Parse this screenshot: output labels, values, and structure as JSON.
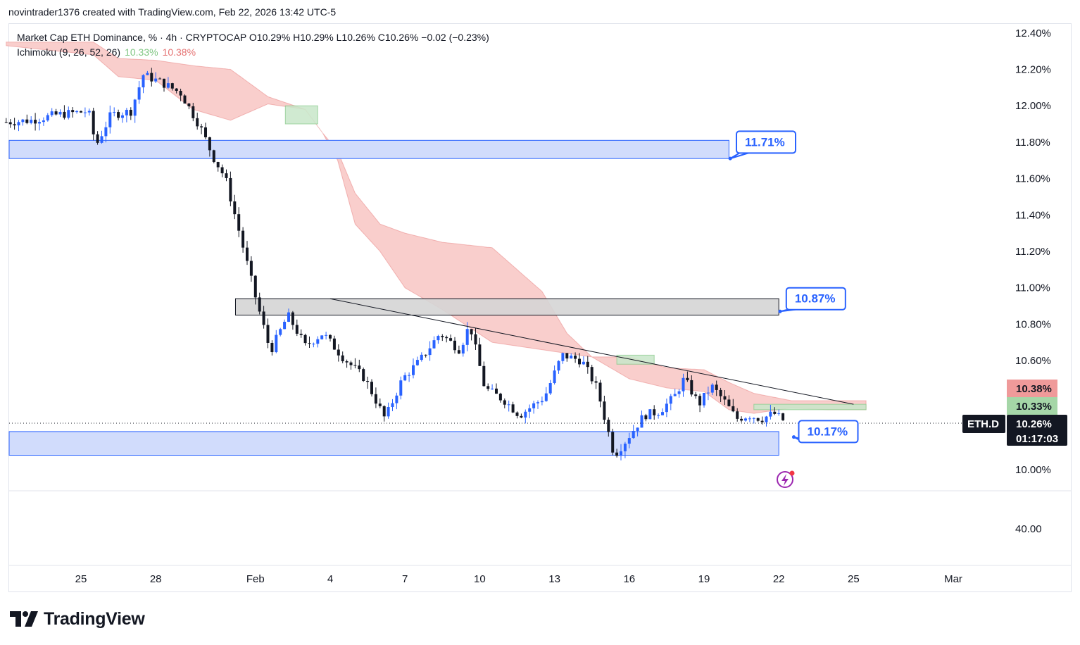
{
  "header": {
    "credit": "novintrader1376 created with TradingView.com, Feb 22, 2026 13:42 UTC-5"
  },
  "legend": {
    "main": "Market Cap ETH Dominance, % · 4h · CRYPTOCAP  O10.29%  H10.29%  L10.26%  C10.26%  −0.02 (−0.23%)",
    "indicator": "Ichimoku (9, 26, 52, 26)",
    "indicator_val1": "10.33%",
    "indicator_val2": "10.38%"
  },
  "price_tags": {
    "symbol": "ETH.D",
    "last": "10.26%",
    "countdown": "01:17:03",
    "span_a": "10.33%",
    "span_b": "10.38%"
  },
  "brand": {
    "name": "TradingView"
  },
  "colors": {
    "bull": "#2962ff",
    "bear": "#131722",
    "cloud_bear": "#f8c9c7",
    "cloud_bull": "#c8e6c9",
    "zone": "#d1dcfc",
    "zone_border": "#2962ff",
    "grey_zone": "#d5d5d5",
    "tag_green": "#a5d6a7",
    "tag_red": "#ef9a9a"
  },
  "chart_data": {
    "type": "candlestick",
    "title": "Market Cap ETH Dominance, % · 4h · CRYPTOCAP",
    "xlabel": "",
    "ylabel": "%",
    "ylim": [
      9.95,
      12.45
    ],
    "x_ticks": [
      "25",
      "28",
      "Feb",
      "4",
      "7",
      "10",
      "13",
      "16",
      "19",
      "22",
      "25",
      "Mar"
    ],
    "x_tick_days": [
      0,
      3,
      7,
      10,
      13,
      16,
      19,
      22,
      25,
      28,
      31,
      35
    ],
    "y_ticks": [
      "12.40%",
      "12.20%",
      "12.00%",
      "11.80%",
      "11.60%",
      "11.40%",
      "11.20%",
      "11.00%",
      "10.80%",
      "10.60%",
      "10.00%"
    ],
    "y_tick_values": [
      12.4,
      12.2,
      12.0,
      11.8,
      11.6,
      11.4,
      11.2,
      11.0,
      10.8,
      10.6,
      10.0
    ],
    "volume_scale_label": "40.00",
    "series": [
      {
        "name": "ETH.D close path (sparse, 4h candles generated between)",
        "points": [
          {
            "day": -3.0,
            "v": 11.91
          },
          {
            "day": -2.0,
            "v": 11.92
          },
          {
            "day": -1.0,
            "v": 11.95
          },
          {
            "day": 0.3,
            "v": 11.97
          },
          {
            "day": 0.6,
            "v": 11.78
          },
          {
            "day": 1.2,
            "v": 11.95
          },
          {
            "day": 2.0,
            "v": 11.97
          },
          {
            "day": 2.5,
            "v": 12.17
          },
          {
            "day": 3.2,
            "v": 12.13
          },
          {
            "day": 4.0,
            "v": 12.07
          },
          {
            "day": 4.8,
            "v": 11.88
          },
          {
            "day": 5.3,
            "v": 11.72
          },
          {
            "day": 5.8,
            "v": 11.6
          },
          {
            "day": 6.4,
            "v": 11.28
          },
          {
            "day": 7.0,
            "v": 10.95
          },
          {
            "day": 7.6,
            "v": 10.65
          },
          {
            "day": 8.3,
            "v": 10.85
          },
          {
            "day": 9.0,
            "v": 10.68
          },
          {
            "day": 9.7,
            "v": 10.75
          },
          {
            "day": 10.5,
            "v": 10.62
          },
          {
            "day": 11.4,
            "v": 10.5
          },
          {
            "day": 12.2,
            "v": 10.28
          },
          {
            "day": 12.9,
            "v": 10.5
          },
          {
            "day": 13.6,
            "v": 10.6
          },
          {
            "day": 14.4,
            "v": 10.75
          },
          {
            "day": 15.2,
            "v": 10.66
          },
          {
            "day": 15.6,
            "v": 10.8
          },
          {
            "day": 16.2,
            "v": 10.45
          },
          {
            "day": 17.0,
            "v": 10.38
          },
          {
            "day": 17.6,
            "v": 10.3
          },
          {
            "day": 18.6,
            "v": 10.4
          },
          {
            "day": 19.3,
            "v": 10.63
          },
          {
            "day": 20.1,
            "v": 10.6
          },
          {
            "day": 20.7,
            "v": 10.45
          },
          {
            "day": 21.4,
            "v": 10.08
          },
          {
            "day": 21.8,
            "v": 10.15
          },
          {
            "day": 22.6,
            "v": 10.3
          },
          {
            "day": 23.2,
            "v": 10.32
          },
          {
            "day": 23.8,
            "v": 10.4
          },
          {
            "day": 24.2,
            "v": 10.5
          },
          {
            "day": 24.8,
            "v": 10.36
          },
          {
            "day": 25.3,
            "v": 10.46
          },
          {
            "day": 25.8,
            "v": 10.38
          },
          {
            "day": 26.3,
            "v": 10.28
          },
          {
            "day": 26.8,
            "v": 10.3
          },
          {
            "day": 27.3,
            "v": 10.28
          },
          {
            "day": 27.8,
            "v": 10.31
          },
          {
            "day": 28.3,
            "v": 10.26
          }
        ]
      },
      {
        "name": "Ichimoku cloud top",
        "points": [
          {
            "day": -3.0,
            "v": 12.35
          },
          {
            "day": 0.5,
            "v": 12.35
          },
          {
            "day": 1.5,
            "v": 12.26
          },
          {
            "day": 3.0,
            "v": 12.25
          },
          {
            "day": 4.5,
            "v": 12.22
          },
          {
            "day": 6.0,
            "v": 12.2
          },
          {
            "day": 7.5,
            "v": 12.05
          },
          {
            "day": 9.0,
            "v": 11.98
          },
          {
            "day": 9.7,
            "v": 11.85
          },
          {
            "day": 10.3,
            "v": 11.75
          },
          {
            "day": 11.0,
            "v": 11.52
          },
          {
            "day": 12.0,
            "v": 11.35
          },
          {
            "day": 13.0,
            "v": 11.3
          },
          {
            "day": 14.5,
            "v": 11.25
          },
          {
            "day": 16.5,
            "v": 11.22
          },
          {
            "day": 17.5,
            "v": 11.1
          },
          {
            "day": 18.5,
            "v": 10.98
          },
          {
            "day": 19.5,
            "v": 10.75
          },
          {
            "day": 20.5,
            "v": 10.62
          },
          {
            "day": 22.0,
            "v": 10.62
          },
          {
            "day": 23.5,
            "v": 10.56
          },
          {
            "day": 25.0,
            "v": 10.55
          },
          {
            "day": 26.0,
            "v": 10.48
          },
          {
            "day": 27.0,
            "v": 10.42
          },
          {
            "day": 28.5,
            "v": 10.38
          },
          {
            "day": 30.0,
            "v": 10.38
          },
          {
            "day": 31.5,
            "v": 10.38
          }
        ]
      },
      {
        "name": "Ichimoku cloud bottom",
        "points": [
          {
            "day": -3.0,
            "v": 12.33
          },
          {
            "day": 0.5,
            "v": 12.28
          },
          {
            "day": 1.5,
            "v": 12.16
          },
          {
            "day": 3.0,
            "v": 12.14
          },
          {
            "day": 4.5,
            "v": 11.98
          },
          {
            "day": 6.0,
            "v": 11.92
          },
          {
            "day": 7.5,
            "v": 12.01
          },
          {
            "day": 9.0,
            "v": 11.98
          },
          {
            "day": 9.7,
            "v": 11.85
          },
          {
            "day": 10.3,
            "v": 11.7
          },
          {
            "day": 11.0,
            "v": 11.35
          },
          {
            "day": 12.0,
            "v": 11.2
          },
          {
            "day": 13.0,
            "v": 11.0
          },
          {
            "day": 14.5,
            "v": 10.88
          },
          {
            "day": 16.5,
            "v": 10.7
          },
          {
            "day": 17.5,
            "v": 10.68
          },
          {
            "day": 18.5,
            "v": 10.66
          },
          {
            "day": 19.5,
            "v": 10.64
          },
          {
            "day": 20.5,
            "v": 10.62
          },
          {
            "day": 22.0,
            "v": 10.5
          },
          {
            "day": 23.5,
            "v": 10.45
          },
          {
            "day": 25.0,
            "v": 10.43
          },
          {
            "day": 26.0,
            "v": 10.33
          },
          {
            "day": 27.0,
            "v": 10.31
          },
          {
            "day": 28.5,
            "v": 10.34
          },
          {
            "day": 30.0,
            "v": 10.33
          },
          {
            "day": 31.5,
            "v": 10.33
          }
        ]
      }
    ],
    "zones": [
      {
        "name": "resistance-zone-upper",
        "from_day": -3.2,
        "to_day": 26.0,
        "top": 11.81,
        "bottom": 11.71,
        "color": "blue"
      },
      {
        "name": "resistance-zone-middle",
        "from_day": 6.2,
        "to_day": 28.0,
        "top": 10.94,
        "bottom": 10.85,
        "color": "grey"
      },
      {
        "name": "support-zone-lower",
        "from_day": -3.2,
        "to_day": 28.0,
        "top": 10.21,
        "bottom": 10.08,
        "color": "blue"
      }
    ],
    "trendline": {
      "from_day": 10.0,
      "from_v": 10.94,
      "to_day": 31.0,
      "to_v": 10.36
    },
    "annotations": [
      {
        "text": "11.71%",
        "day": 26.3,
        "v": 11.86
      },
      {
        "text": "10.87%",
        "day": 28.3,
        "v": 11.0
      },
      {
        "text": "10.17%",
        "day": 28.8,
        "v": 10.27
      }
    ],
    "last_price": 10.26,
    "legend": [
      "Ichimoku (9, 26, 52, 26)"
    ]
  }
}
